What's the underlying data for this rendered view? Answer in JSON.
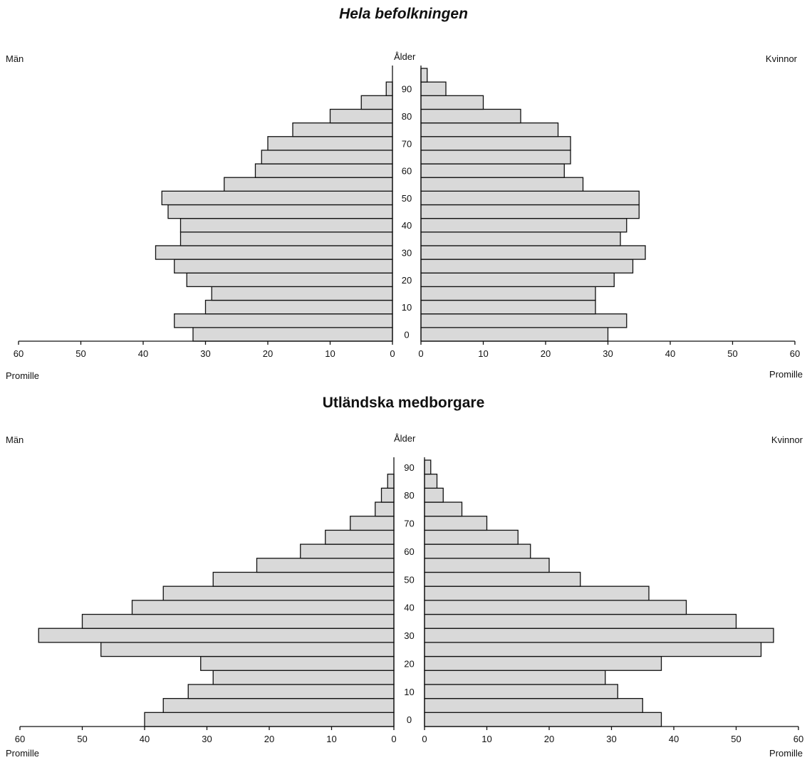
{
  "chart_data": [
    {
      "type": "bar",
      "orientation": "horizontal-population-pyramid",
      "title": "Hela befolkningen",
      "left_label": "Män",
      "right_label": "Kvinnor",
      "center_label": "Ålder",
      "xlabel_left": "Promille",
      "xlabel_right": "Promille",
      "xlim": [
        0,
        60
      ],
      "x_ticks": [
        "60",
        "50",
        "40",
        "30",
        "20",
        "10",
        "0"
      ],
      "x_ticks_right": [
        "0",
        "10",
        "20",
        "30",
        "40",
        "50",
        "60"
      ],
      "age_ticks": [
        "0",
        "10",
        "20",
        "30",
        "40",
        "50",
        "60",
        "70",
        "80",
        "90"
      ],
      "categories": [
        "0-4",
        "5-9",
        "10-14",
        "15-19",
        "20-24",
        "25-29",
        "30-34",
        "35-39",
        "40-44",
        "45-49",
        "50-54",
        "55-59",
        "60-64",
        "65-69",
        "70-74",
        "75-79",
        "80-84",
        "85-89",
        "90-94",
        "95+"
      ],
      "series": [
        {
          "name": "Män",
          "values": [
            32,
            35,
            30,
            29,
            33,
            35,
            38,
            34,
            34,
            36,
            37,
            27,
            22,
            21,
            20,
            16,
            10,
            5,
            1,
            0
          ]
        },
        {
          "name": "Kvinnor",
          "values": [
            30,
            33,
            28,
            28,
            31,
            34,
            36,
            32,
            33,
            35,
            35,
            26,
            23,
            24,
            24,
            22,
            16,
            10,
            4,
            1
          ]
        }
      ]
    },
    {
      "type": "bar",
      "orientation": "horizontal-population-pyramid",
      "title": "Utländska medborgare",
      "left_label": "Män",
      "right_label": "Kvinnor",
      "center_label": "Ålder",
      "xlabel_left": "Promille",
      "xlabel_right": "Promille",
      "xlim": [
        0,
        60
      ],
      "x_ticks": [
        "60",
        "50",
        "40",
        "30",
        "20",
        "10",
        "0"
      ],
      "x_ticks_right": [
        "0",
        "10",
        "20",
        "30",
        "40",
        "50",
        "60"
      ],
      "age_ticks": [
        "0",
        "10",
        "20",
        "30",
        "40",
        "50",
        "60",
        "70",
        "80",
        "90"
      ],
      "categories": [
        "0-4",
        "5-9",
        "10-14",
        "15-19",
        "20-24",
        "25-29",
        "30-34",
        "35-39",
        "40-44",
        "45-49",
        "50-54",
        "55-59",
        "60-64",
        "65-69",
        "70-74",
        "75-79",
        "80-84",
        "85-89",
        "90-94"
      ],
      "series": [
        {
          "name": "Män",
          "values": [
            40,
            37,
            33,
            29,
            31,
            47,
            57,
            50,
            42,
            37,
            29,
            22,
            15,
            11,
            7,
            3,
            2,
            1,
            0
          ]
        },
        {
          "name": "Kvinnor",
          "values": [
            38,
            35,
            31,
            29,
            38,
            54,
            56,
            50,
            42,
            36,
            25,
            20,
            17,
            15,
            10,
            6,
            3,
            2,
            1
          ]
        }
      ]
    }
  ]
}
